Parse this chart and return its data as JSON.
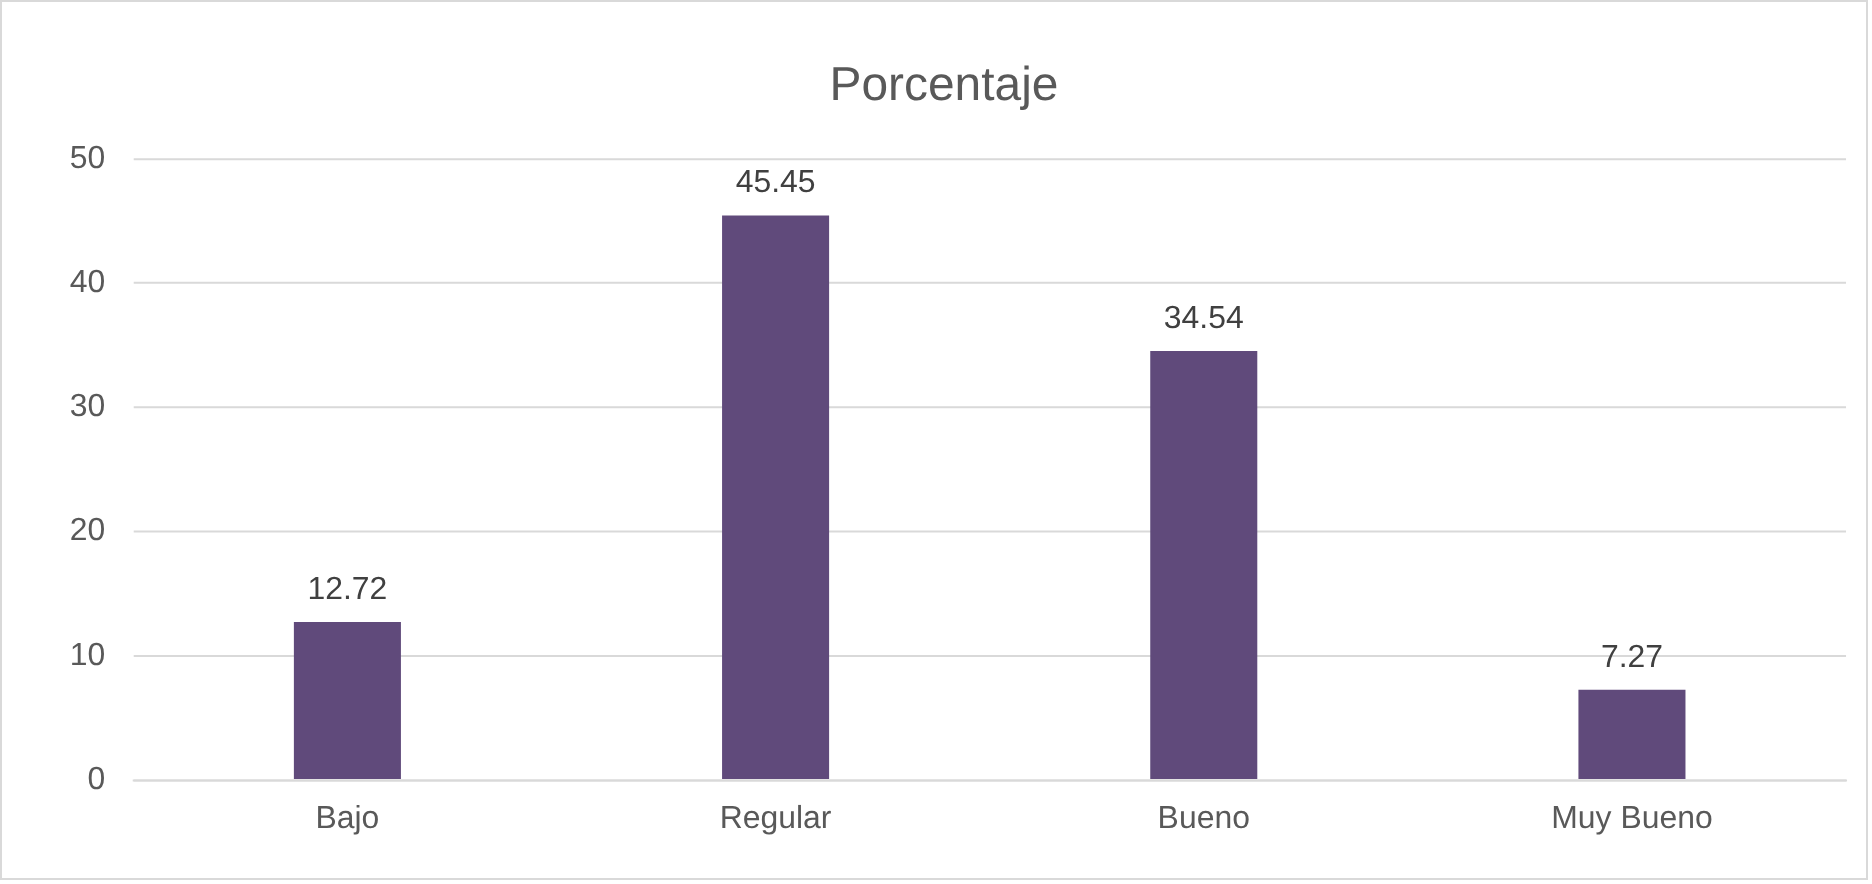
{
  "chart_data": {
    "type": "bar",
    "title": "Porcentaje",
    "categories": [
      "Bajo",
      "Regular",
      "Bueno",
      "Muy Bueno"
    ],
    "values": [
      12.72,
      45.45,
      34.54,
      7.27
    ],
    "color": "#604a7b",
    "ylim": [
      0,
      50
    ],
    "yticks": [
      0,
      10,
      20,
      30,
      40,
      50
    ],
    "grid": "y",
    "data_labels": true
  }
}
